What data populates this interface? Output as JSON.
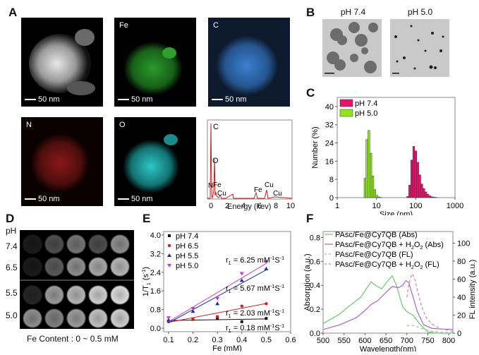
{
  "panels": {
    "A": {
      "label": "A",
      "images": [
        {
          "name": "haadf",
          "element": "",
          "scale": "50 nm"
        },
        {
          "name": "fe-map",
          "element": "Fe",
          "scale": "50 nm",
          "color": "#2fb52f"
        },
        {
          "name": "c-map",
          "element": "C",
          "scale": "50 nm",
          "color": "#3a7fd0"
        },
        {
          "name": "n-map",
          "element": "N",
          "scale": "50 nm",
          "color": "#b01818"
        },
        {
          "name": "o-map",
          "element": "O",
          "scale": "50 nm",
          "color": "#2ec6c6"
        }
      ],
      "eds": {
        "xlabel": "Energy (kev)",
        "xticks": [
          "0",
          "2",
          "4",
          "6",
          "8",
          "10"
        ],
        "peaks": [
          "C",
          "O",
          "N",
          "Fe",
          "Cu",
          "Fe",
          "Cu",
          "Cu"
        ]
      }
    },
    "B": {
      "label": "B",
      "images": [
        {
          "title": "pH 7.4",
          "scale": "100 nm"
        },
        {
          "title": "pH 5.0",
          "scale": "100 nm"
        }
      ]
    },
    "C": {
      "label": "C"
    },
    "D": {
      "label": "D",
      "row_header": "pH",
      "rows": [
        "7.4",
        "6.5",
        "5.5",
        "5.0"
      ],
      "caption": "Fe Content : 0 ~ 0.5 mM"
    },
    "E": {
      "label": "E"
    },
    "F": {
      "label": "F"
    }
  },
  "chart_data": [
    {
      "panel": "C",
      "type": "bar",
      "title": "",
      "xlabel": "Size (nm)",
      "ylabel": "Number (%)",
      "xscale": "log",
      "xlim": [
        1,
        1000
      ],
      "ylim": [
        0,
        44
      ],
      "xticks": [
        "1",
        "10",
        "100",
        "1000"
      ],
      "yticks": [
        "0",
        "8",
        "16",
        "24",
        "32",
        "40"
      ],
      "legend": [
        "pH 7.4",
        "pH 5.0"
      ],
      "series": [
        {
          "name": "pH 7.4",
          "color": "#e8116c",
          "x": [
            62,
            70,
            79,
            89,
            100,
            113,
            127,
            143,
            161,
            181,
            204,
            230,
            259,
            292,
            330
          ],
          "values": [
            0.5,
            5.5,
            16.5,
            22.5,
            20.5,
            15.5,
            10,
            6,
            4,
            2.5,
            1.5,
            0.8,
            0.4,
            0.2,
            0.1
          ]
        },
        {
          "name": "pH 5.0",
          "color": "#8ee51e",
          "x": [
            5.1,
            5.7,
            6.4,
            7.2,
            8.1,
            9.1,
            10.2,
            11.5,
            12.9
          ],
          "values": [
            8.5,
            25.5,
            29.5,
            19.5,
            9.5,
            3.5,
            1,
            0.3,
            0.1
          ]
        }
      ]
    },
    {
      "panel": "E",
      "type": "scatter",
      "title": "",
      "xlabel": "Fe (mM)",
      "ylabel": "1/T1 (s-1)",
      "xlim": [
        0.1,
        0.6
      ],
      "ylim": [
        0.0,
        4.0
      ],
      "xticks": [
        "0.1",
        "0.2",
        "0.3",
        "0.4",
        "0.5",
        "0.6"
      ],
      "yticks": [
        "0.0",
        "0.8",
        "1.6",
        "2.4",
        "3.2",
        "4.0"
      ],
      "legend": [
        "pH 7.4",
        "pH 6.5",
        "pH 5.5",
        "pH 5.0"
      ],
      "x": [
        0.1,
        0.2,
        0.3,
        0.4,
        0.5
      ],
      "series": [
        {
          "name": "pH 7.4",
          "color": "#111111",
          "marker": "square",
          "values": [
            0.3,
            0.38,
            0.42,
            0.28,
            0.42
          ],
          "fit": [
            0.33,
            0.4
          ],
          "r1": "0.18"
        },
        {
          "name": "pH 6.5",
          "color": "#d02020",
          "marker": "circle",
          "values": [
            0.28,
            0.4,
            0.5,
            0.95,
            1.05
          ],
          "fit": [
            0.25,
            1.06
          ],
          "r1": "2.03"
        },
        {
          "name": "pH 5.5",
          "color": "#1a2fa0",
          "marker": "triangle-up",
          "values": [
            0.35,
            0.72,
            1.05,
            2.05,
            2.55
          ],
          "fit": [
            0.23,
            2.5
          ],
          "r1": "5.67"
        },
        {
          "name": "pH 5.0",
          "color": "#c040c0",
          "marker": "triangle-down",
          "values": [
            0.45,
            0.85,
            1.28,
            2.35,
            2.85
          ],
          "fit": [
            0.28,
            2.78
          ],
          "r1": "6.25"
        }
      ],
      "annotations": [
        "r1 = 6.25 mM-1S-1",
        "r1 = 5.67 mM-1S-1",
        "r1 = 2.03 mM-1S-1",
        "r1 = 0.18 mM-1S-1"
      ]
    },
    {
      "panel": "F",
      "type": "line",
      "title": "",
      "xlabel": "Wavelength(nm)",
      "ylabel": "Absorption (a.u.)",
      "ylabel_right": "FL intensity (a.u.)",
      "xlim": [
        500,
        810
      ],
      "ylim": [
        0.0,
        0.85
      ],
      "ylim_right": [
        0,
        113
      ],
      "xticks": [
        "500",
        "550",
        "600",
        "650",
        "700",
        "750",
        "800"
      ],
      "yticks": [
        "0.0",
        "0.2",
        "0.4",
        "0.6",
        "0.8"
      ],
      "yticks_right": [
        "0",
        "20",
        "40",
        "60",
        "80",
        "100"
      ],
      "legend": [
        "PAsc/Fe@Cy7QB (Abs)",
        "PAsc/Fe@Cy7QB + H2O2 (Abs)",
        "PAsc/Fe@Cy7QB (FL)",
        "PAsc/Fe@Cy7QB + H2O2 (FL)"
      ],
      "series": [
        {
          "name": "PAsc/Fe@Cy7QB (Abs)",
          "color": "#6cc86c",
          "style": "solid",
          "axis": "left",
          "x": [
            500,
            520,
            540,
            560,
            575,
            590,
            605,
            615,
            625,
            640,
            655,
            665,
            675,
            690,
            700,
            715,
            730,
            750,
            770,
            790,
            810
          ],
          "values": [
            0.08,
            0.12,
            0.16,
            0.22,
            0.26,
            0.3,
            0.38,
            0.43,
            0.4,
            0.37,
            0.44,
            0.48,
            0.4,
            0.22,
            0.18,
            0.15,
            0.08,
            0.01,
            0.0,
            0.0,
            0.0
          ]
        },
        {
          "name": "PAsc/Fe@Cy7QB + H2O2 (Abs)",
          "color": "#b060c0",
          "style": "solid",
          "axis": "left",
          "x": [
            500,
            520,
            540,
            560,
            580,
            600,
            615,
            630,
            650,
            665,
            680,
            690,
            698,
            705,
            715,
            725,
            740,
            760,
            780,
            810
          ],
          "values": [
            0.03,
            0.05,
            0.07,
            0.1,
            0.13,
            0.19,
            0.24,
            0.27,
            0.34,
            0.39,
            0.38,
            0.4,
            0.44,
            0.42,
            0.3,
            0.18,
            0.07,
            0.04,
            0.035,
            0.03
          ]
        },
        {
          "name": "PAsc/Fe@Cy7QB (FL)",
          "color": "#8fcf8f",
          "style": "dashed",
          "axis": "right",
          "x": [
            700,
            710,
            720,
            730,
            745,
            760,
            780,
            810
          ],
          "values": [
            8,
            9,
            8,
            6,
            4,
            2,
            1,
            0.5
          ]
        },
        {
          "name": "PAsc/Fe@Cy7QB + H2O2 (FL)",
          "color": "#c080c8",
          "style": "dashed",
          "axis": "right",
          "x": [
            700,
            705,
            712,
            718,
            725,
            735,
            745,
            760,
            780,
            810
          ],
          "values": [
            40,
            55,
            66,
            62,
            48,
            30,
            18,
            10,
            5,
            2
          ]
        }
      ]
    }
  ]
}
